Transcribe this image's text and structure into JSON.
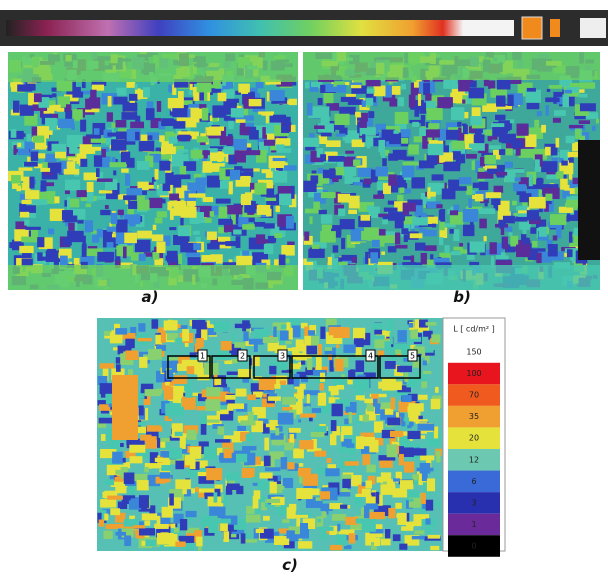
{
  "figure": {
    "panels": [
      {
        "label": "a)"
      },
      {
        "label": "b)"
      },
      {
        "label": "c)"
      }
    ],
    "legend": {
      "unit": "L [ cd/m² ]",
      "levels": [
        "150",
        "100",
        "70",
        "35",
        "20",
        "12",
        "6",
        "3",
        "1",
        "0"
      ]
    },
    "regions": [
      "1",
      "2",
      "3",
      "4",
      "5"
    ]
  }
}
